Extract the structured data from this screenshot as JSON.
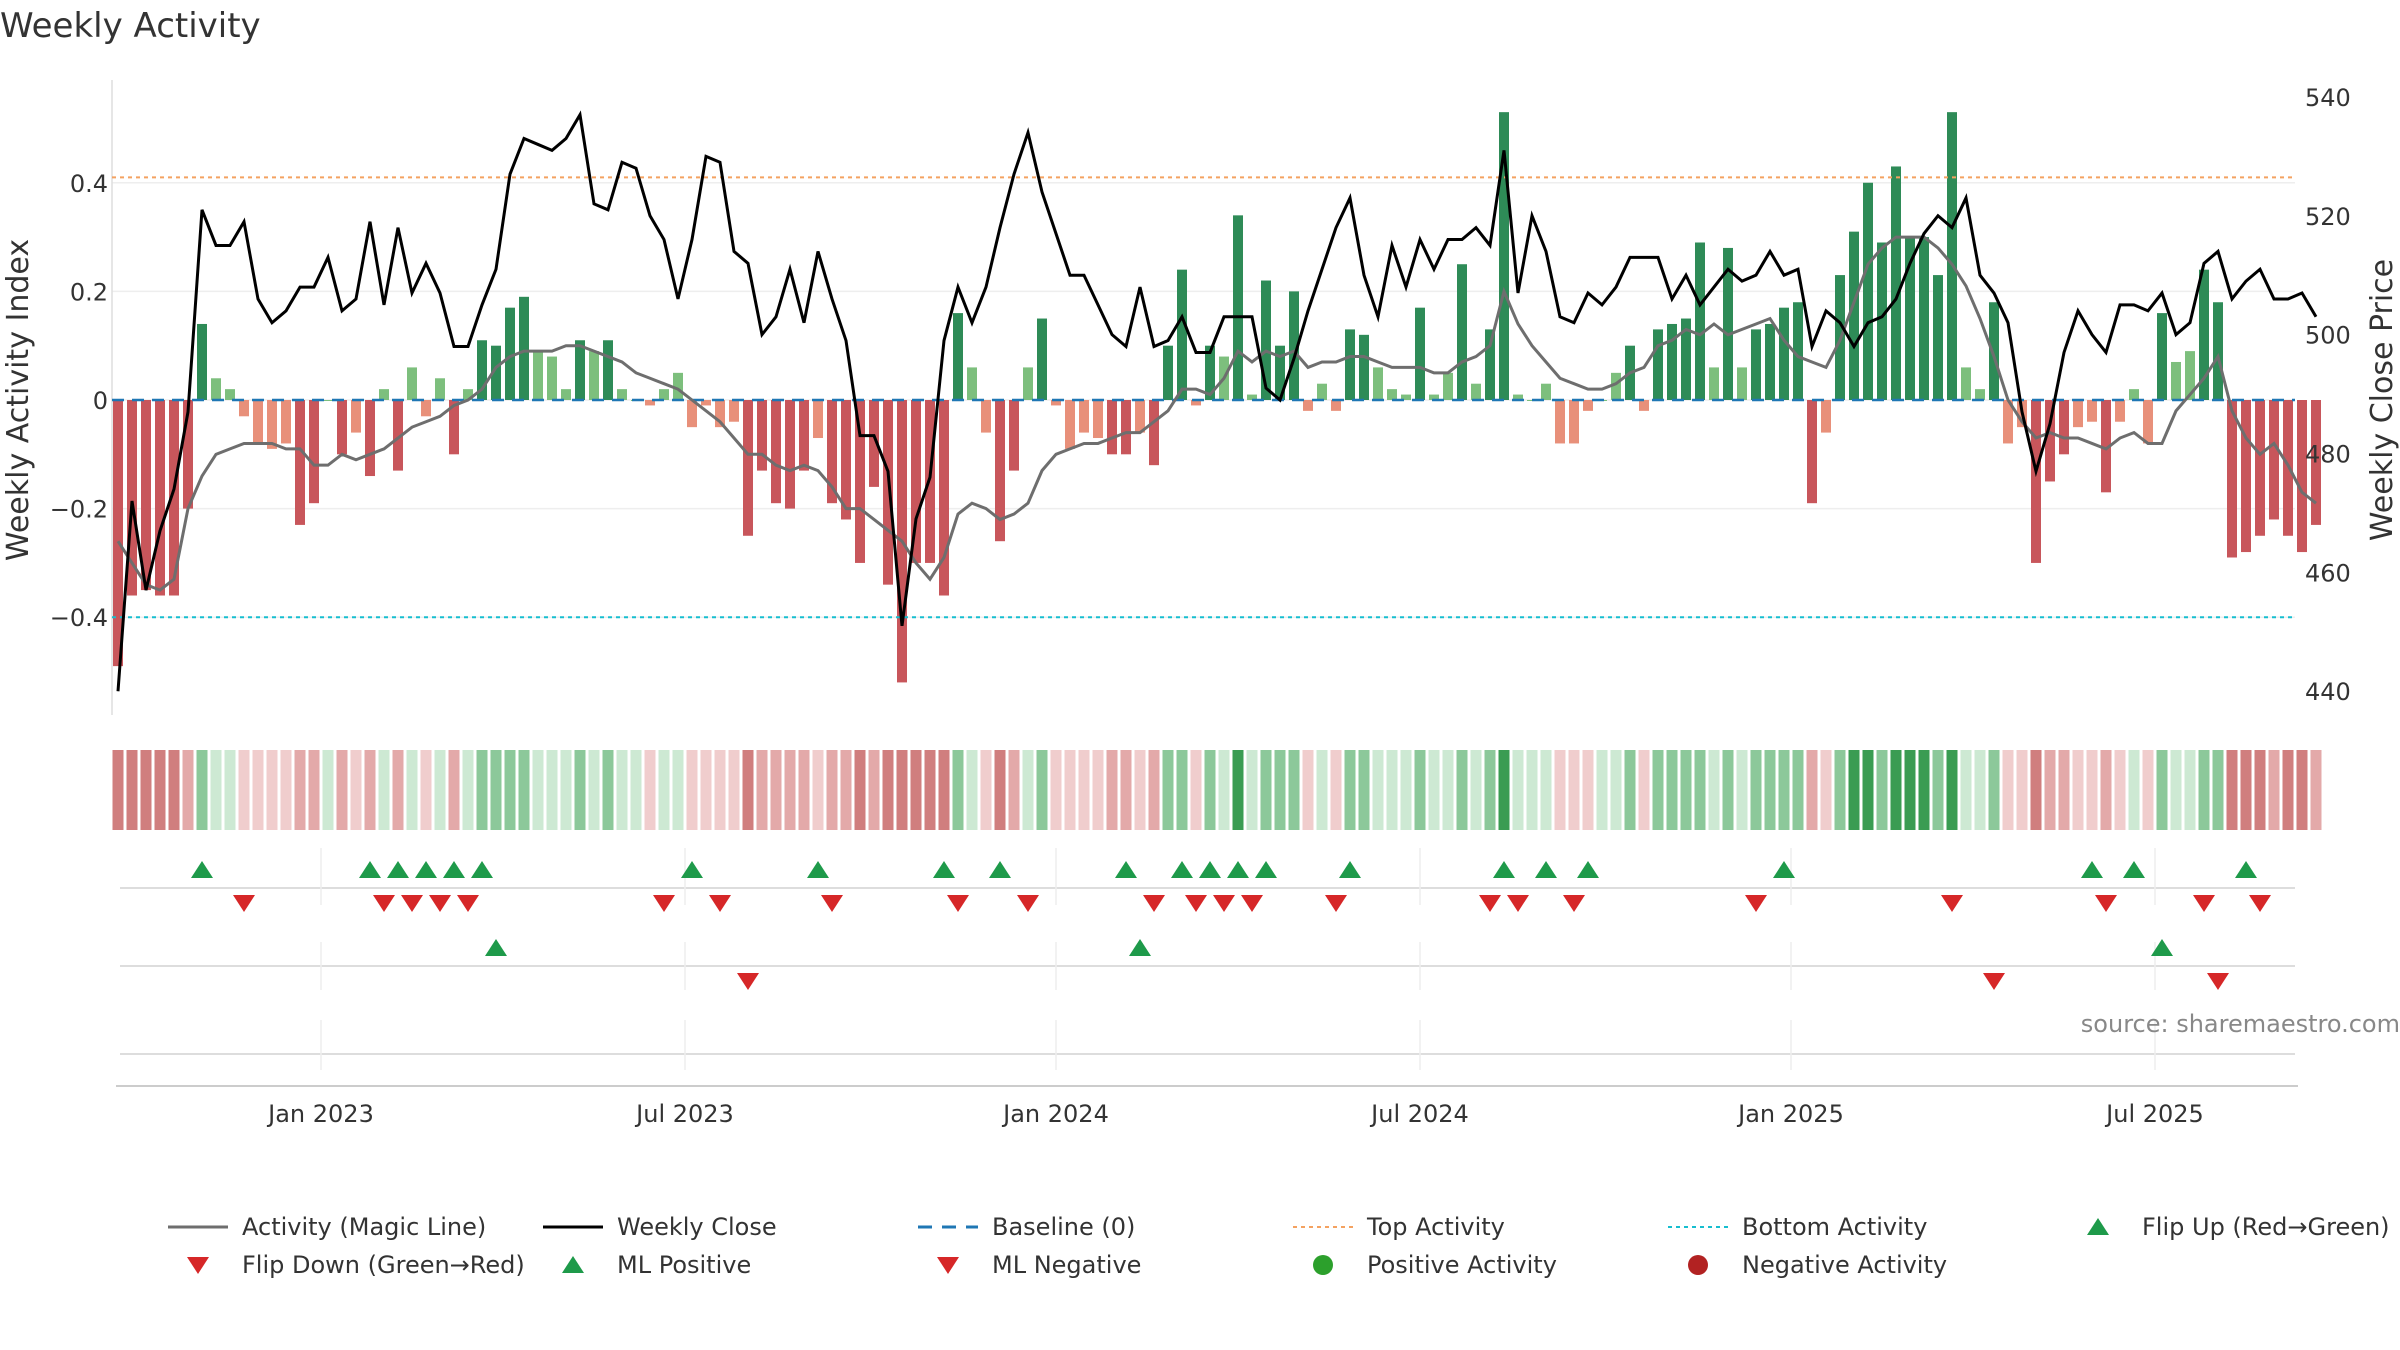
{
  "title": "Weekly Activity",
  "source": "source: sharemaestro.com",
  "colors": {
    "strong_pos": "#2e8b57",
    "light_pos": "#7dbf7d",
    "strong_neg": "#c8565b",
    "light_neg": "#e8907a",
    "magic_line": "#6e6e6e",
    "close_line": "#000000",
    "baseline": "#1f77b4",
    "top_line": "#f4a261",
    "bottom_line": "#17becf",
    "marker_up": "#1e9a4a",
    "marker_down": "#d62728",
    "dot_pos": "#2ca02c",
    "dot_neg": "#b22222"
  },
  "legend": [
    {
      "label": "Activity (Magic Line)",
      "icon": "solid-gray-line-icon"
    },
    {
      "label": "Weekly Close",
      "icon": "solid-black-line-icon"
    },
    {
      "label": "Baseline (0)",
      "icon": "dashed-blue-line-icon"
    },
    {
      "label": "Top Activity",
      "icon": "dotted-orange-line-icon"
    },
    {
      "label": "Bottom Activity",
      "icon": "dotted-cyan-line-icon"
    },
    {
      "label": "Flip Up (Red→Green)",
      "icon": "green-triangle-up-icon"
    },
    {
      "label": "Flip Down (Green→Red)",
      "icon": "red-triangle-down-icon"
    },
    {
      "label": "ML Positive",
      "icon": "green-triangle-up-icon"
    },
    {
      "label": "ML Negative",
      "icon": "red-triangle-down-icon"
    },
    {
      "label": "Positive Activity",
      "icon": "green-dot-icon"
    },
    {
      "label": "Negative Activity",
      "icon": "dark-red-dot-icon"
    }
  ],
  "chart_data": {
    "type": "bar",
    "title": "Weekly Activity",
    "ylabel": "Weekly Activity Index",
    "y2label": "Weekly Close Price",
    "ylim": [
      -0.58,
      0.58
    ],
    "y2lim": [
      436,
      542
    ],
    "yticks": [
      {
        "value": 0.4,
        "label": "0.4"
      },
      {
        "value": 0.2,
        "label": "0.2"
      },
      {
        "value": 0,
        "label": "0"
      },
      {
        "value": -0.2,
        "label": "−0.2"
      },
      {
        "value": -0.4,
        "label": "−0.4"
      }
    ],
    "y2ticks": [
      {
        "value": 540,
        "label": "540"
      },
      {
        "value": 520,
        "label": "520"
      },
      {
        "value": 500,
        "label": "500"
      },
      {
        "value": 480,
        "label": "480"
      },
      {
        "value": 460,
        "label": "460"
      },
      {
        "value": 440,
        "label": "440"
      }
    ],
    "xticks": [
      {
        "week": 14.5,
        "label": "Jan 2023"
      },
      {
        "week": 40.5,
        "label": "Jul 2023"
      },
      {
        "week": 67,
        "label": "Jan 2024"
      },
      {
        "week": 93,
        "label": "Jul 2024"
      },
      {
        "week": 119.5,
        "label": "Jan 2025"
      },
      {
        "week": 145.5,
        "label": "Jul 2025"
      }
    ],
    "top_activity": 0.41,
    "bottom_activity": -0.4,
    "baseline": 0,
    "weekly_activity": [
      -0.49,
      -0.36,
      -0.35,
      -0.36,
      -0.36,
      -0.2,
      0.14,
      0.04,
      0.02,
      -0.03,
      -0.08,
      -0.09,
      -0.08,
      -0.23,
      -0.19,
      0,
      -0.1,
      -0.06,
      -0.14,
      0.02,
      -0.13,
      0.06,
      -0.03,
      0.04,
      -0.1,
      0.02,
      0.11,
      0.1,
      0.17,
      0.19,
      0.09,
      0.08,
      0.02,
      0.11,
      0.09,
      0.11,
      0.02,
      0,
      -0.01,
      0.02,
      0.05,
      -0.05,
      -0.01,
      -0.05,
      -0.04,
      -0.25,
      -0.13,
      -0.19,
      -0.2,
      -0.13,
      -0.07,
      -0.19,
      -0.22,
      -0.3,
      -0.16,
      -0.34,
      -0.52,
      -0.3,
      -0.3,
      -0.36,
      0.16,
      0.06,
      -0.06,
      -0.26,
      -0.13,
      0.06,
      0.15,
      -0.01,
      -0.09,
      -0.06,
      -0.07,
      -0.1,
      -0.1,
      -0.06,
      -0.12,
      0.1,
      0.24,
      -0.01,
      0.1,
      0.08,
      0.34,
      0.01,
      0.22,
      0.1,
      0.2,
      -0.02,
      0.03,
      -0.02,
      0.13,
      0.12,
      0.06,
      0.02,
      0.01,
      0.17,
      0.01,
      0.05,
      0.25,
      0.03,
      0.13,
      0.53,
      0.01,
      0,
      0.03,
      -0.08,
      -0.08,
      -0.02,
      0,
      0.05,
      0.1,
      -0.02,
      0.13,
      0.14,
      0.15,
      0.29,
      0.06,
      0.28,
      0.06,
      0.13,
      0.14,
      0.17,
      0.18,
      -0.19,
      -0.06,
      0.23,
      0.31,
      0.4,
      0.29,
      0.43,
      0.3,
      0.3,
      0.23,
      0.53,
      0.06,
      0.02,
      0.18,
      -0.08,
      -0.05,
      -0.3,
      -0.15,
      -0.1,
      -0.05,
      -0.04,
      -0.17,
      -0.04,
      0.02,
      -0.08,
      0.16,
      0.07,
      0.09,
      0.24,
      0.18,
      -0.29,
      -0.28,
      -0.25,
      -0.22,
      -0.25,
      -0.28,
      -0.23
    ],
    "activity_magic_line": [
      -0.26,
      -0.3,
      -0.34,
      -0.35,
      -0.33,
      -0.2,
      -0.14,
      -0.1,
      -0.09,
      -0.08,
      -0.08,
      -0.08,
      -0.09,
      -0.09,
      -0.12,
      -0.12,
      -0.1,
      -0.11,
      -0.1,
      -0.09,
      -0.07,
      -0.05,
      -0.04,
      -0.03,
      -0.01,
      0.0,
      0.02,
      0.06,
      0.08,
      0.09,
      0.09,
      0.09,
      0.1,
      0.1,
      0.09,
      0.08,
      0.07,
      0.05,
      0.04,
      0.03,
      0.02,
      0.0,
      -0.02,
      -0.04,
      -0.07,
      -0.1,
      -0.1,
      -0.12,
      -0.13,
      -0.12,
      -0.13,
      -0.16,
      -0.2,
      -0.2,
      -0.22,
      -0.24,
      -0.26,
      -0.3,
      -0.33,
      -0.29,
      -0.21,
      -0.19,
      -0.2,
      -0.22,
      -0.21,
      -0.19,
      -0.13,
      -0.1,
      -0.09,
      -0.08,
      -0.08,
      -0.07,
      -0.06,
      -0.06,
      -0.04,
      -0.02,
      0.02,
      0.02,
      0.01,
      0.04,
      0.09,
      0.07,
      0.09,
      0.08,
      0.09,
      0.06,
      0.07,
      0.07,
      0.08,
      0.08,
      0.07,
      0.06,
      0.06,
      0.06,
      0.05,
      0.05,
      0.07,
      0.08,
      0.1,
      0.2,
      0.14,
      0.1,
      0.07,
      0.04,
      0.03,
      0.02,
      0.02,
      0.03,
      0.05,
      0.06,
      0.1,
      0.11,
      0.13,
      0.12,
      0.14,
      0.12,
      0.13,
      0.14,
      0.15,
      0.11,
      0.08,
      0.07,
      0.06,
      0.11,
      0.18,
      0.25,
      0.28,
      0.3,
      0.3,
      0.3,
      0.28,
      0.25,
      0.21,
      0.15,
      0.08,
      0.0,
      -0.04,
      -0.07,
      -0.06,
      -0.07,
      -0.07,
      -0.08,
      -0.09,
      -0.07,
      -0.06,
      -0.08,
      -0.08,
      -0.02,
      0.01,
      0.04,
      0.08,
      -0.02,
      -0.07,
      -0.1,
      -0.08,
      -0.12,
      -0.17,
      -0.19
    ],
    "weekly_close": [
      440,
      472,
      457,
      467,
      474,
      487,
      521,
      515,
      515,
      519,
      506,
      502,
      504,
      508,
      508,
      513,
      504,
      506,
      519,
      505,
      518,
      507,
      512,
      507,
      498,
      498,
      505,
      511,
      527,
      533,
      532,
      531,
      533,
      537,
      522,
      521,
      529,
      528,
      520,
      516,
      506,
      516,
      530,
      529,
      514,
      512,
      500,
      503,
      511,
      502,
      514,
      506,
      499,
      483,
      483,
      477,
      451,
      469,
      476,
      499,
      508,
      502,
      508,
      518,
      527,
      534,
      524,
      517,
      510,
      510,
      505,
      500,
      498,
      508,
      498,
      499,
      503,
      497,
      497,
      503,
      503,
      503,
      491,
      489,
      496,
      504,
      511,
      518,
      523,
      510,
      503,
      515,
      508,
      516,
      511,
      516,
      516,
      518,
      515,
      531,
      507,
      520,
      514,
      503,
      502,
      507,
      505,
      508,
      513,
      513,
      513,
      506,
      510,
      505,
      508,
      511,
      509,
      510,
      514,
      510,
      511,
      498,
      504,
      502,
      498,
      502,
      503,
      506,
      512,
      517,
      520,
      518,
      523,
      510,
      507,
      502,
      487,
      477,
      485,
      497,
      504,
      500,
      497,
      505,
      505,
      504,
      507,
      500,
      502,
      512,
      514,
      506,
      509,
      511,
      506,
      506,
      507,
      503
    ],
    "flip_up_weeks": [
      6,
      18,
      20,
      22,
      24,
      26,
      41,
      50,
      59,
      63,
      72,
      76,
      78,
      80,
      82,
      88,
      99,
      102,
      105,
      119,
      141,
      144,
      152
    ],
    "flip_down_weeks": [
      9,
      19,
      21,
      23,
      25,
      39,
      43,
      51,
      60,
      65,
      74,
      77,
      79,
      81,
      87,
      98,
      100,
      104,
      117,
      131,
      142,
      149,
      153
    ],
    "ml_positive_weeks": [
      27,
      73,
      146
    ],
    "ml_negative_weeks": [
      45,
      134,
      150
    ]
  }
}
